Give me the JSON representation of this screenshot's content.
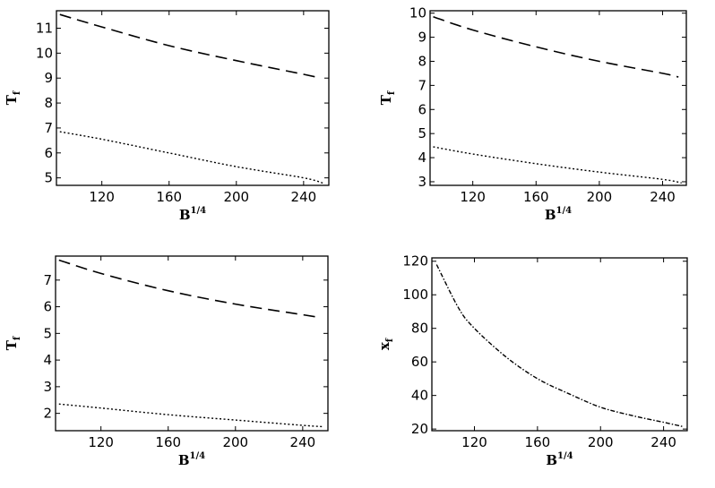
{
  "chart_data": [
    {
      "type": "line",
      "xlabel": {
        "base": "B",
        "sup": "1/4"
      },
      "ylabel": {
        "base": "T",
        "sub": "f"
      },
      "xlim": [
        93,
        255
      ],
      "ylim": [
        4.7,
        11.7
      ],
      "xticks": [
        120,
        160,
        200,
        240
      ],
      "yticks": [
        5,
        6,
        7,
        8,
        9,
        10,
        11
      ],
      "series": [
        {
          "style": "dashed",
          "x": [
            95,
            120,
            160,
            200,
            240,
            250
          ],
          "y": [
            11.55,
            11.05,
            10.3,
            9.7,
            9.15,
            9.0
          ]
        },
        {
          "style": "dotted",
          "x": [
            95,
            120,
            160,
            200,
            240,
            252
          ],
          "y": [
            6.85,
            6.55,
            6.0,
            5.45,
            5.0,
            4.78
          ]
        }
      ]
    },
    {
      "type": "line",
      "xlabel": {
        "base": "B",
        "sup": "1/4"
      },
      "ylabel": {
        "base": "T",
        "sub": "f"
      },
      "xlim": [
        93,
        255
      ],
      "ylim": [
        2.85,
        10.1
      ],
      "xticks": [
        120,
        160,
        200,
        240
      ],
      "yticks": [
        3,
        4,
        5,
        6,
        7,
        8,
        9,
        10
      ],
      "series": [
        {
          "style": "dashed",
          "x": [
            95,
            120,
            160,
            200,
            240,
            250
          ],
          "y": [
            9.85,
            9.3,
            8.6,
            8.0,
            7.5,
            7.35
          ]
        },
        {
          "style": "dotted",
          "x": [
            95,
            120,
            160,
            200,
            240,
            252
          ],
          "y": [
            4.45,
            4.15,
            3.75,
            3.4,
            3.1,
            2.95
          ]
        }
      ]
    },
    {
      "type": "line",
      "xlabel": {
        "base": "B",
        "sup": "1/4"
      },
      "ylabel": {
        "base": "T",
        "sub": "f"
      },
      "xlim": [
        93,
        255
      ],
      "ylim": [
        1.35,
        7.9
      ],
      "xticks": [
        120,
        160,
        200,
        240
      ],
      "yticks": [
        2,
        3,
        4,
        5,
        6,
        7
      ],
      "series": [
        {
          "style": "dashed",
          "x": [
            95,
            120,
            160,
            200,
            240,
            250
          ],
          "y": [
            7.75,
            7.25,
            6.6,
            6.1,
            5.7,
            5.6
          ]
        },
        {
          "style": "dotted",
          "x": [
            95,
            120,
            160,
            200,
            240,
            252
          ],
          "y": [
            2.35,
            2.2,
            1.95,
            1.75,
            1.55,
            1.5
          ]
        }
      ]
    },
    {
      "type": "line",
      "xlabel": {
        "base": "B",
        "sup": "1/4"
      },
      "ylabel": {
        "base": "x",
        "sub": "f"
      },
      "xlim": [
        93,
        255
      ],
      "ylim": [
        19,
        122
      ],
      "xticks": [
        120,
        160,
        200,
        240
      ],
      "yticks": [
        20,
        40,
        60,
        80,
        100,
        120
      ],
      "series": [
        {
          "style": "dashdot",
          "x": [
            96,
            110,
            120,
            140,
            160,
            180,
            200,
            220,
            240,
            252
          ],
          "y": [
            118,
            92,
            80,
            63,
            50,
            41,
            33,
            28,
            24,
            21.5
          ]
        }
      ]
    }
  ]
}
